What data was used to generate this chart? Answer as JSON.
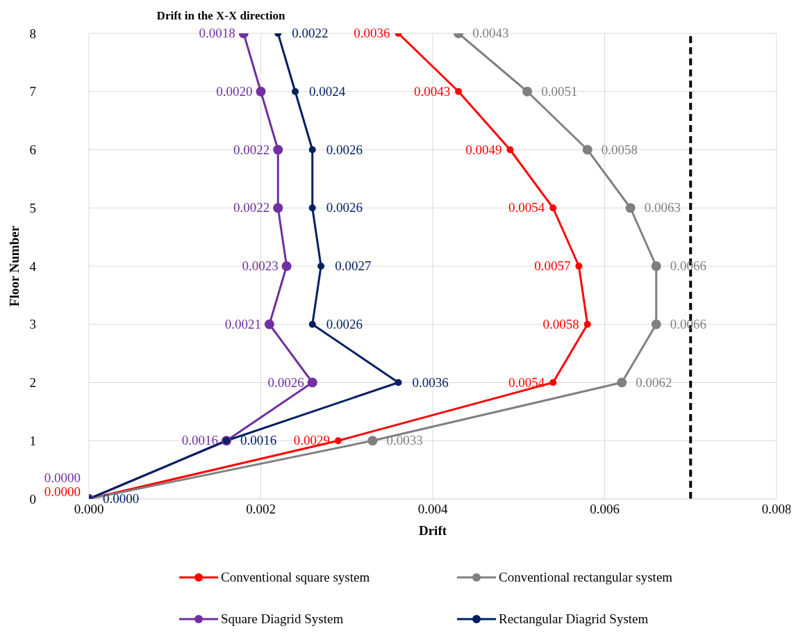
{
  "chart_data": {
    "type": "line",
    "orientation": "horizontal",
    "title": "Drift in the X-X direction",
    "xlabel": "Drift",
    "ylabel": "Floor Number",
    "categories": [
      "8",
      "7",
      "6",
      "5",
      "4",
      "3",
      "2",
      "1",
      "0"
    ],
    "xlim": [
      0,
      0.008
    ],
    "xticks": [
      {
        "value": 0,
        "label": "0.000"
      },
      {
        "value": 0.002,
        "label": "0.002"
      },
      {
        "value": 0.004,
        "label": "0.004"
      },
      {
        "value": 0.006,
        "label": "0.006"
      },
      {
        "value": 0.008,
        "label": "0.008"
      }
    ],
    "grid": true,
    "legend": "bottom",
    "marker": "circle",
    "line_style": "solid",
    "ref_lines": [
      {
        "axis": "x",
        "value": 0.007,
        "color": "#000000",
        "line_style": "dashed"
      }
    ],
    "series": [
      {
        "name": "Conventional square system",
        "color": "#ff0000",
        "values": [
          0.0036,
          0.0043,
          0.0049,
          0.0054,
          0.0057,
          0.0058,
          0.0054,
          0.0029,
          0
        ],
        "value_labels": [
          "0.0036",
          "0.0043",
          "0.0049",
          "0.0054",
          "0.0057",
          "0.0058",
          "0.0054",
          "0.0029",
          "0.0000"
        ]
      },
      {
        "name": "Conventional rectangular system",
        "color": "#808080",
        "values": [
          0.0043,
          0.0051,
          0.0058,
          0.0063,
          0.0066,
          0.0066,
          0.0062,
          0.0033,
          0
        ],
        "value_labels": [
          "0.0043",
          "0.0051",
          "0.0058",
          "0.0063",
          "0.0066",
          "0.0066",
          "0.0062",
          "0.0033",
          null
        ]
      },
      {
        "name": "Square Diagrid System",
        "color": "#7030a0",
        "values": [
          0.0018,
          0.002,
          0.0022,
          0.0022,
          0.0023,
          0.0021,
          0.0026,
          0.0016,
          0
        ],
        "value_labels": [
          "0.0018",
          "0.0020",
          "0.0022",
          "0.0022",
          "0.0023",
          "0.0021",
          "0.0026",
          "0.0016",
          "0.0000"
        ]
      },
      {
        "name": "Rectangular Diagrid System",
        "color": "#002060",
        "values": [
          0.0022,
          0.0024,
          0.0026,
          0.0026,
          0.0027,
          0.0026,
          0.0036,
          0.0016,
          0
        ],
        "value_labels": [
          "0.0022",
          "0.0024",
          "0.0026",
          "0.0026",
          "0.0027",
          "0.0026",
          "0.0036",
          "0.0016",
          "0.0000"
        ]
      }
    ]
  }
}
